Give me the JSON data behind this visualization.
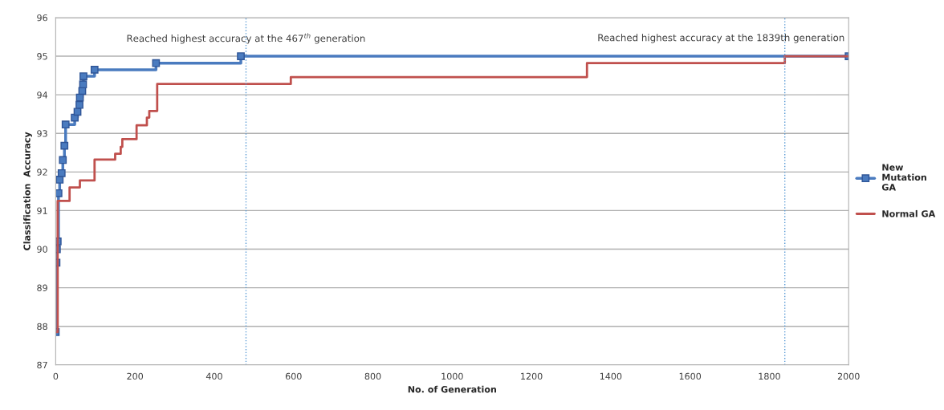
{
  "chart_data": {
    "type": "step",
    "xlabel": "No. of Generation",
    "ylabel": "Classification  Accuracy",
    "xlim": [
      0,
      2000
    ],
    "xticks": [
      0,
      200,
      400,
      600,
      800,
      1000,
      1200,
      1400,
      1600,
      1800,
      2000
    ],
    "ylim": [
      87,
      96
    ],
    "yticks": [
      87,
      88,
      89,
      90,
      91,
      92,
      93,
      94,
      95,
      96
    ],
    "grid": "y",
    "legend": "right",
    "series": [
      {
        "name": "New Mutation GA",
        "color": "#4a7bbf",
        "marker": "square",
        "x": [
          0,
          2,
          3,
          5,
          7,
          10,
          15,
          18,
          22,
          25,
          48,
          55,
          60,
          61,
          67,
          69,
          70,
          98,
          253,
          467,
          2000
        ],
        "values": [
          87.85,
          89.65,
          90.0,
          90.2,
          91.45,
          91.8,
          91.97,
          92.31,
          92.68,
          93.23,
          93.41,
          93.56,
          93.74,
          93.93,
          94.1,
          94.27,
          94.48,
          94.65,
          94.82,
          95.0,
          95.0
        ]
      },
      {
        "name": "Normal GA",
        "color": "#c0504d",
        "x": [
          0,
          5,
          35,
          61,
          98,
          150,
          164,
          168,
          204,
          230,
          236,
          256,
          593,
          1340,
          1839,
          2000
        ],
        "values": [
          87.85,
          91.25,
          91.6,
          91.78,
          92.32,
          92.47,
          92.65,
          92.85,
          93.21,
          93.41,
          93.58,
          94.28,
          94.46,
          94.82,
          95.0,
          95.0
        ]
      }
    ],
    "ref_lines": [
      {
        "axis": "x",
        "value": 480,
        "color": "#5b9bd5",
        "line_style": "dotted"
      },
      {
        "axis": "x",
        "value": 1839,
        "color": "#5b9bd5",
        "line_style": "dotted"
      }
    ],
    "annotations": [
      "Reached highest accuracy at the 467$^{th}$ generation",
      "Reached highest accuracy at the 1839th generation"
    ]
  }
}
